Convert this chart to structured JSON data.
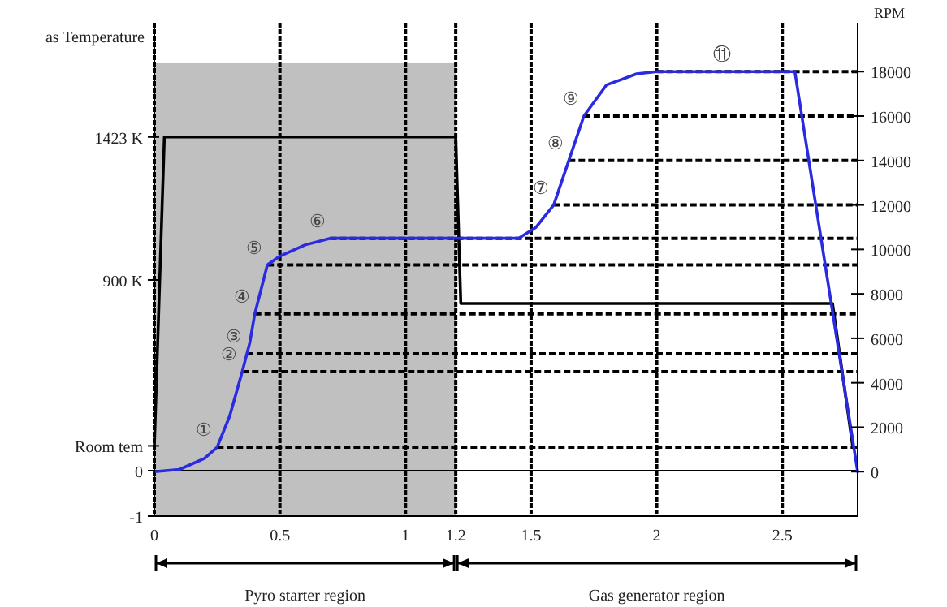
{
  "chart_data": {
    "type": "line",
    "ylabel": "as Temperature",
    "y2label": "RPM",
    "xlim": [
      0,
      2.8
    ],
    "xticks": [
      0,
      0.5,
      1,
      1.2,
      1.5,
      2,
      2.5
    ],
    "ylim": [
      36,
      1841
    ],
    "yticks": [
      {
        "value": 293,
        "label": "Room tem"
      },
      {
        "value": 900,
        "label": "900 K"
      },
      {
        "value": 1423,
        "label": "1423 K"
      }
    ],
    "y3lim": [
      -1,
      9.86
    ],
    "y3ticks": [
      -1,
      0
    ],
    "annotations": [
      "Pyro starter region",
      "Gas generator region"
    ],
    "y2lim": [
      -2000,
      20200
    ],
    "y2ticks": [
      0,
      2000,
      4000,
      6000,
      8000,
      10000,
      12000,
      14000,
      16000,
      18000
    ],
    "grid": "x",
    "marker": "none",
    "line_style": "solid",
    "series": [
      {
        "color": "#000000",
        "x": [
          0,
          0.04,
          1.2,
          1.22,
          2.7,
          2.78
        ],
        "values": [
          293,
          1423,
          1423,
          814,
          814,
          293
        ]
      },
      {
        "color": "#2a2ae0",
        "axis": "y2",
        "x": [
          0,
          0.1,
          0.2,
          0.25,
          0.3,
          0.35,
          0.38,
          0.4,
          0.45,
          0.5,
          0.6,
          0.7,
          1.0,
          1.2,
          1.45,
          1.52,
          1.59,
          1.65,
          1.71,
          1.8,
          1.92,
          2.0,
          2.55,
          2.8
        ],
        "values": [
          0,
          100,
          600,
          1100,
          2500,
          4500,
          5800,
          7100,
          9300,
          9700,
          10200,
          10500,
          10500,
          10500,
          10500,
          11000,
          12000,
          14000,
          16000,
          17400,
          17900,
          18000,
          18000,
          0
        ]
      }
    ],
    "bands": [
      {
        "axis": "x",
        "from": 0,
        "to": 1.2,
        "color": "#c0c0c0"
      }
    ],
    "ref_lines": [
      {
        "axis": "y3",
        "value": 0,
        "line_style": "solid"
      },
      {
        "axis": "y2",
        "value": 1100,
        "label": "①",
        "line_style": "dashed"
      },
      {
        "axis": "y2",
        "value": 4500,
        "label": "②",
        "line_style": "dashed"
      },
      {
        "axis": "y2",
        "value": 5300,
        "label": "③",
        "line_style": "dashed"
      },
      {
        "axis": "y2",
        "value": 7100,
        "label": "④",
        "line_style": "dashed"
      },
      {
        "axis": "y2",
        "value": 9300,
        "label": "⑤",
        "line_style": "dashed"
      },
      {
        "axis": "y2",
        "value": 10500,
        "label": "⑥",
        "line_style": "dashed"
      },
      {
        "axis": "y2",
        "value": 12000,
        "label": "⑦",
        "line_style": "dashed"
      },
      {
        "axis": "y2",
        "value": 14000,
        "label": "⑧",
        "line_style": "dashed"
      },
      {
        "axis": "y2",
        "value": 16000,
        "label": "⑨",
        "line_style": "dashed"
      },
      {
        "axis": "y2",
        "value": 18000,
        "label": "⑪",
        "line_style": "dashed"
      }
    ]
  }
}
